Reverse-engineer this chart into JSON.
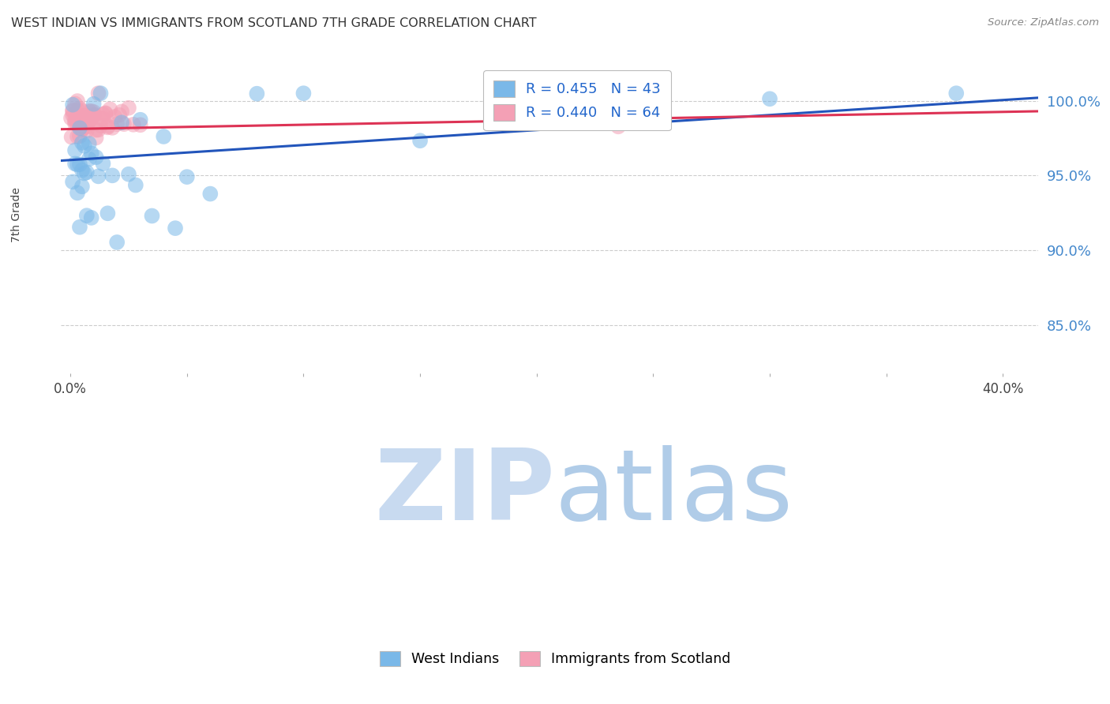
{
  "title": "WEST INDIAN VS IMMIGRANTS FROM SCOTLAND 7TH GRADE CORRELATION CHART",
  "source": "Source: ZipAtlas.com",
  "ylabel": "7th Grade",
  "ylim": [
    0.818,
    1.025
  ],
  "xlim": [
    -0.004,
    0.415
  ],
  "ytick_positions": [
    0.85,
    0.9,
    0.95,
    1.0
  ],
  "ytick_labels": [
    "85.0%",
    "90.0%",
    "95.0%",
    "100.0%"
  ],
  "xtick_positions": [
    0.0,
    0.05,
    0.1,
    0.15,
    0.2,
    0.25,
    0.3,
    0.35,
    0.4
  ],
  "xtick_labels_show": [
    "0.0%",
    "",
    "",
    "",
    "",
    "",
    "",
    "",
    "40.0%"
  ],
  "background_color": "#ffffff",
  "grid_color": "#cccccc",
  "legend_R1": "R = 0.455",
  "legend_N1": "N = 43",
  "legend_R2": "R = 0.440",
  "legend_N2": "N = 64",
  "series1_color": "#7ab8e8",
  "series2_color": "#f4a0b5",
  "trendline1_color": "#2255bb",
  "trendline2_color": "#dd3355",
  "legend1_label": "West Indians",
  "legend2_label": "Immigrants from Scotland",
  "watermark_zip_color": "#c8daf0",
  "watermark_atlas_color": "#b0cce8"
}
